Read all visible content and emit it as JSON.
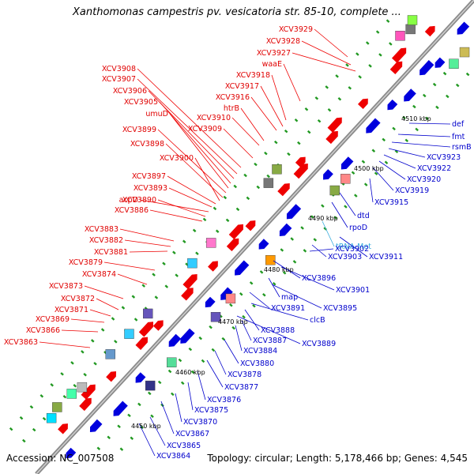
{
  "title": "Xanthomonas campestris pv. vesicatoria str. 85-10, complete ...",
  "footer": {
    "accession": "Accession: NC_007508",
    "topology": "Topology: circular; Length: 5,178,466 bp; Genes: 4,545"
  },
  "colors": {
    "forward_gene": "#ee0000",
    "reverse_gene": "#0000dd",
    "backbone": "#999999",
    "tick": "#229922",
    "trna": "#33aadd"
  },
  "scale_labels": [
    "4450 kbp",
    "4460 kbp",
    "4470 kbp",
    "4480 kbp",
    "4490 kbp",
    "4500 kbp",
    "4510 kbp"
  ],
  "forward_labels": [
    "XCV3929",
    "XCV3928",
    "XCV3927",
    "waaE",
    "XCV3918",
    "XCV3917",
    "XCV3916",
    "htrB",
    "XCV3910",
    "XCV3909",
    "XCV3908",
    "XCV3907",
    "XCV3906",
    "XCV3905",
    "umuD",
    "XCV3899",
    "XCV3898",
    "XCV3900",
    "XCV3897",
    "XCV3893",
    "acpD",
    "XCV3890",
    "XCV3886",
    "XCV3883",
    "XCV3882",
    "XCV3881",
    "XCV3879",
    "XCV3874",
    "XCV3873",
    "XCV3872",
    "XCV3871",
    "XCV3869",
    "XCV3866",
    "XCV3863"
  ],
  "reverse_labels": [
    "def",
    "fmt",
    "rsmB",
    "XCV3923",
    "XCV3922",
    "XCV3920",
    "XCV3919",
    "XCV3915",
    "dtd",
    "rpoD",
    "tRNA-Met",
    "XCV3903",
    "XCV3911",
    "XCV3902",
    "XCV3896",
    "XCV3901",
    "map",
    "XCV3895",
    "XCV3891",
    "clcB",
    "XCV3888",
    "XCV3889",
    "XCV3887",
    "XCV3884",
    "XCV3880",
    "XCV3878",
    "XCV3877",
    "XCV3876",
    "XCV3875",
    "XCV3870",
    "XCV3867",
    "XCV3865",
    "XCV3864"
  ]
}
